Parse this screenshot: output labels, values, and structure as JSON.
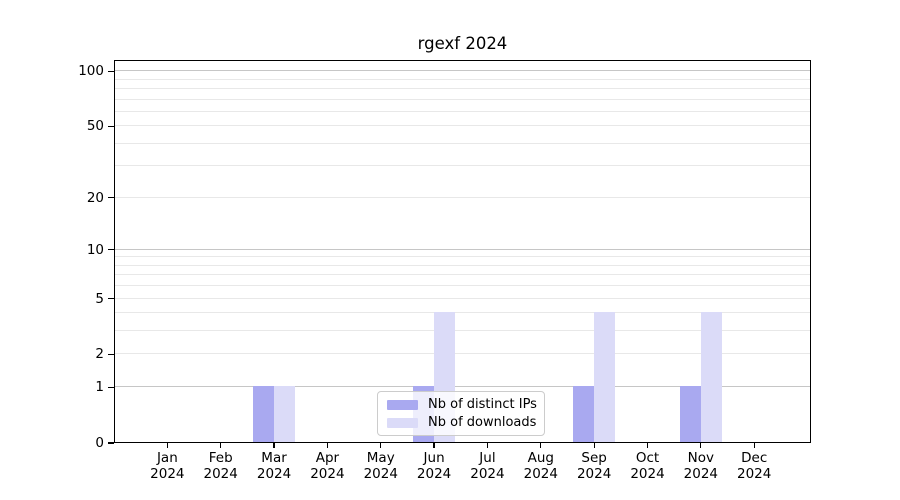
{
  "figure": {
    "title": "rgexf 2024",
    "background": "#ffffff"
  },
  "chart_data": {
    "type": "bar",
    "title": "rgexf 2024",
    "categories": [
      "Jan 2024",
      "Feb 2024",
      "Mar 2024",
      "Apr 2024",
      "May 2024",
      "Jun 2024",
      "Jul 2024",
      "Aug 2024",
      "Sep 2024",
      "Oct 2024",
      "Nov 2024",
      "Dec 2024"
    ],
    "x_tick_month": [
      "Jan",
      "Feb",
      "Mar",
      "Apr",
      "May",
      "Jun",
      "Jul",
      "Aug",
      "Sep",
      "Oct",
      "Nov",
      "Dec"
    ],
    "x_tick_year": "2024",
    "series": [
      {
        "key": "distinct-ips",
        "name": "Nb of distinct IPs",
        "color": "#a9a9f0",
        "values": [
          0,
          0,
          1,
          0,
          0,
          1,
          0,
          0,
          1,
          0,
          1,
          0
        ]
      },
      {
        "key": "downloads",
        "name": "Nb of downloads",
        "color": "#dbdbf8",
        "values": [
          0,
          0,
          1,
          0,
          0,
          4,
          0,
          0,
          4,
          0,
          4,
          0
        ]
      }
    ],
    "yscale": "log1p",
    "ylim": [
      0,
      115
    ],
    "ytick_labels": [
      "0",
      "1",
      "2",
      "5",
      "10",
      "20",
      "50",
      "100"
    ],
    "ytick_values": [
      0,
      1,
      2,
      5,
      10,
      20,
      50,
      100
    ],
    "major_gridlines": [
      1,
      10,
      100
    ],
    "minor_gridlines": [
      2,
      3,
      4,
      5,
      6,
      7,
      8,
      9,
      20,
      30,
      40,
      50,
      60,
      70,
      80,
      90
    ],
    "grid": true,
    "legend_position": "lower center",
    "xlabel": "",
    "ylabel": ""
  }
}
